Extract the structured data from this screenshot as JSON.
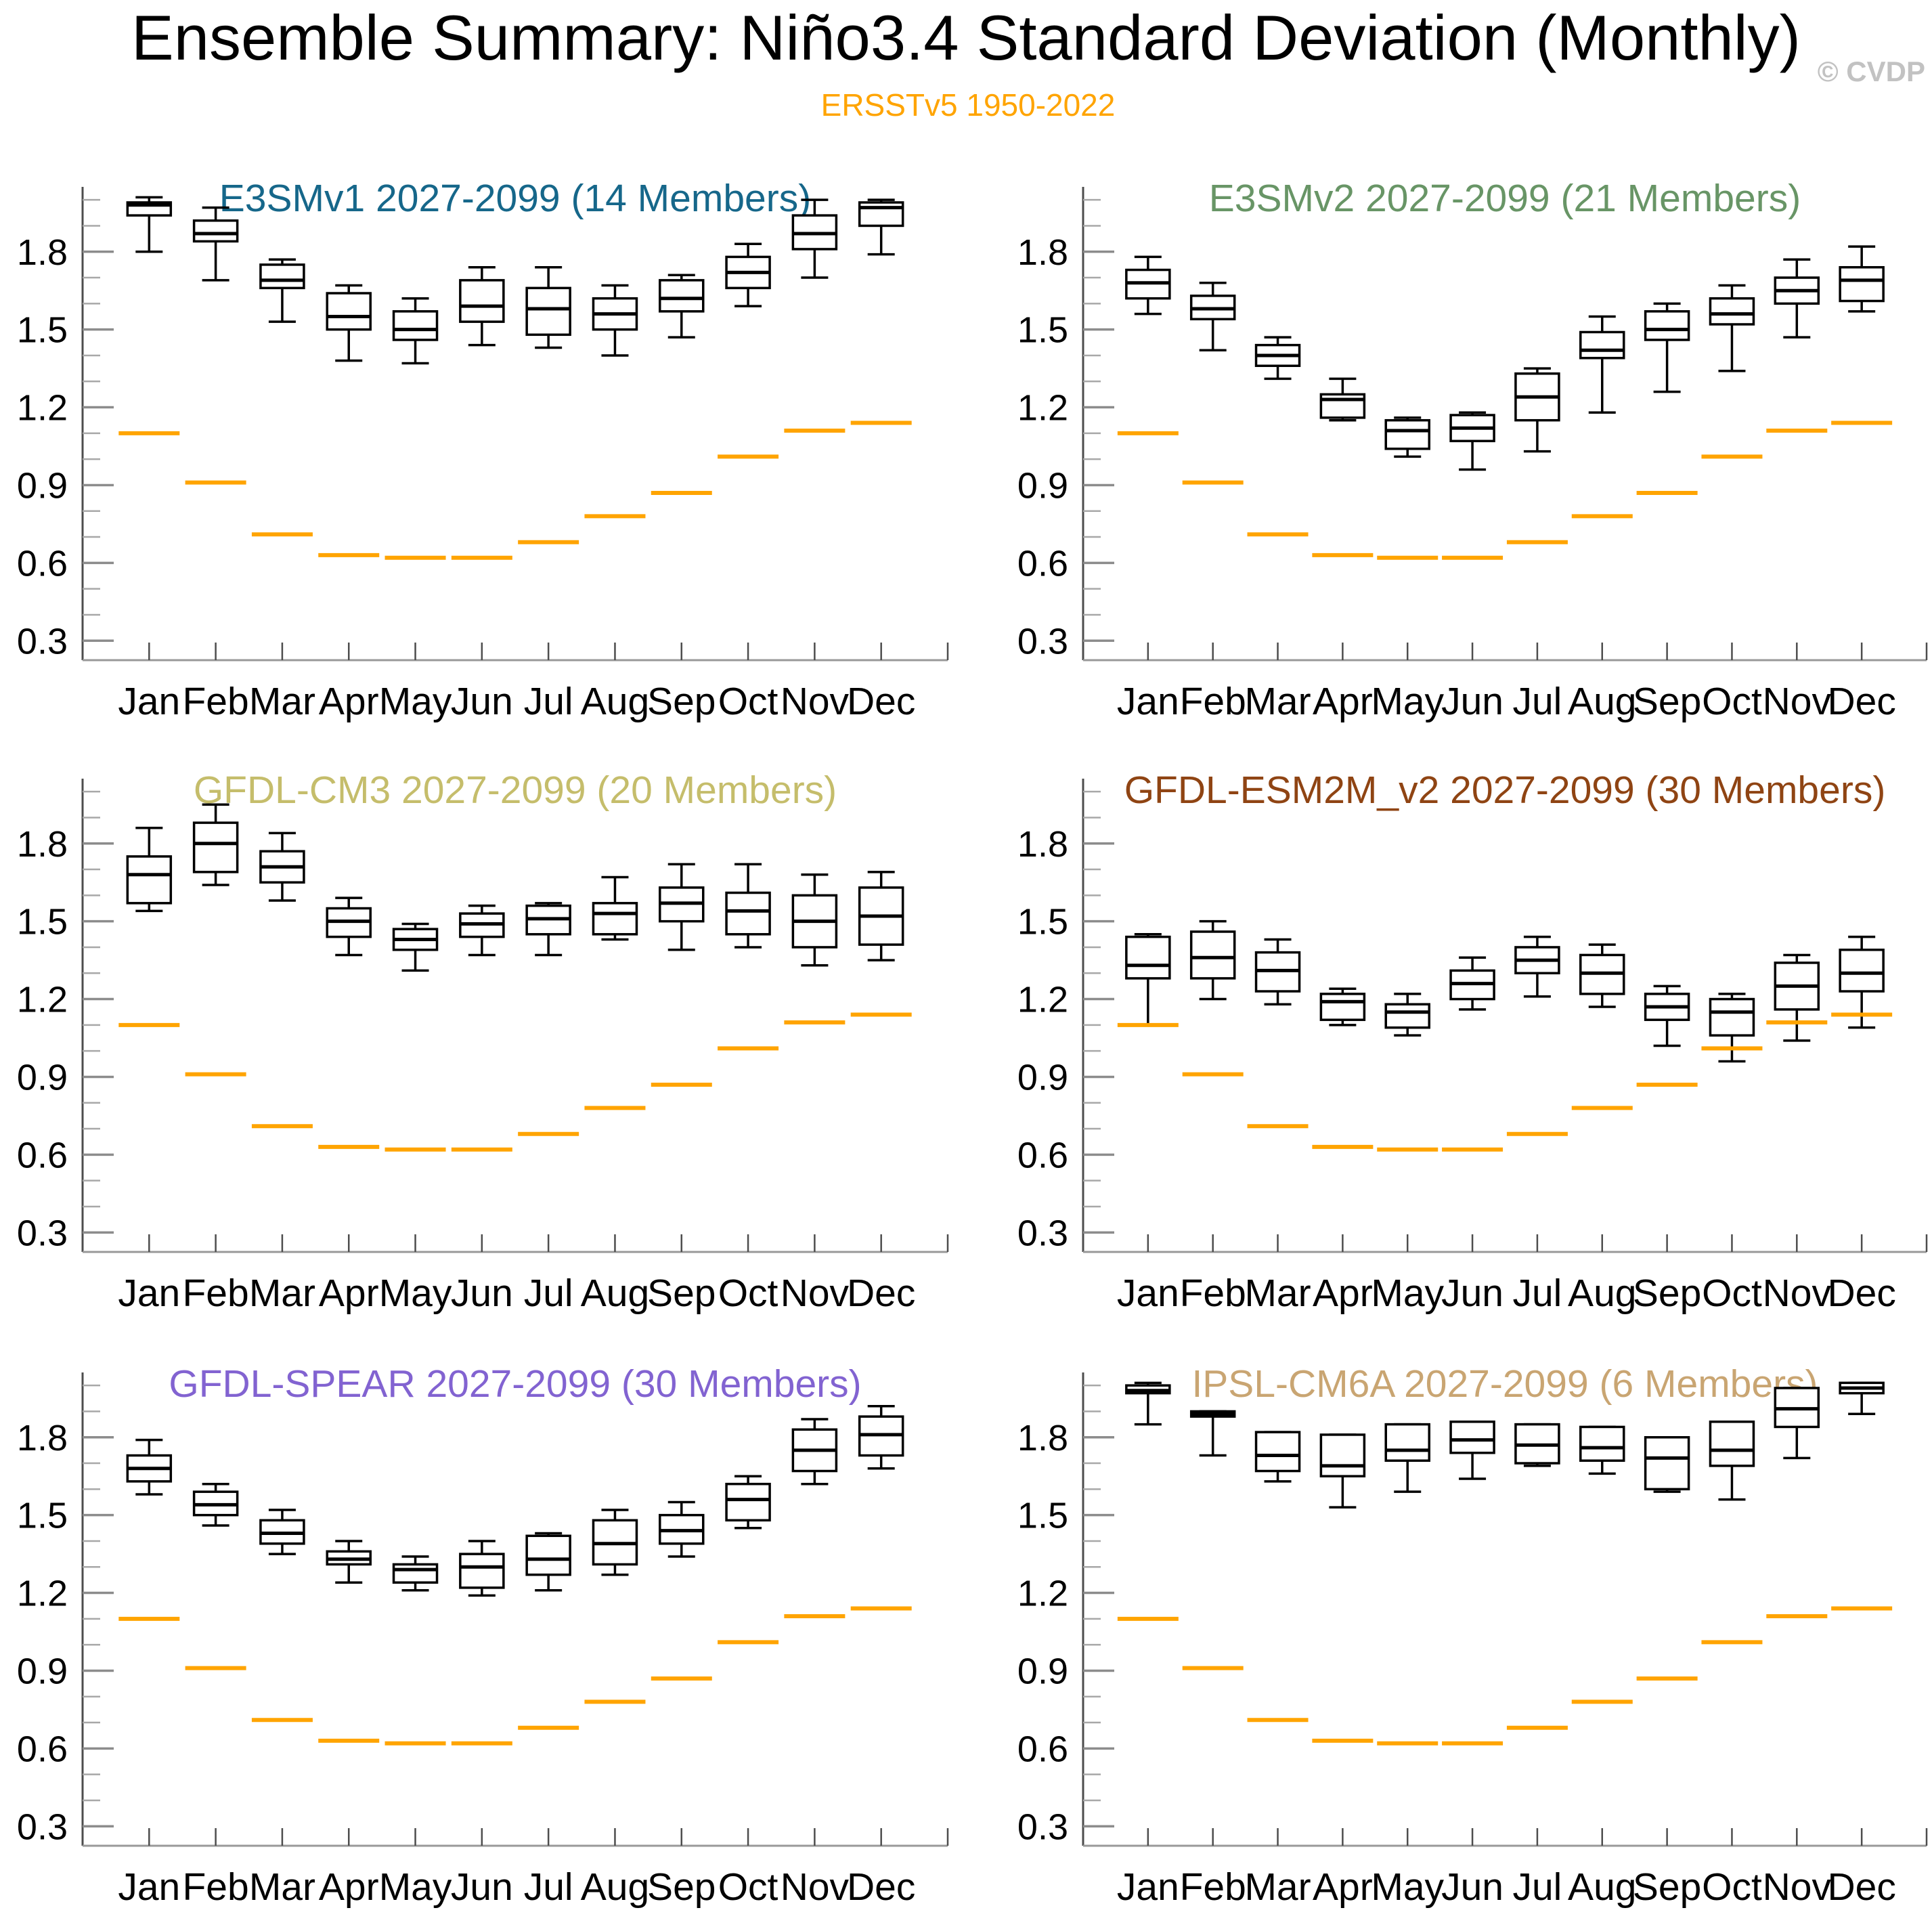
{
  "header": {
    "title": "Ensemble Summary: Niño3.4 Standard Deviation (Monthly)",
    "subtitle": "ERSSTv5 1950-2022",
    "watermark": "© CVDP"
  },
  "colors": {
    "title": "#000000",
    "subtitle": "#FFA400",
    "watermark": "#C2C2C2",
    "observation_line": "#FFA400",
    "box_line": "#000000",
    "axis_spine": "#4D4D4D",
    "major_tick": "#8C8C8C",
    "minor_tick": "#A8A8A8"
  },
  "months": [
    "Jan",
    "Feb",
    "Mar",
    "Apr",
    "May",
    "Jun",
    "Jul",
    "Aug",
    "Sep",
    "Oct",
    "Nov",
    "Dec"
  ],
  "y_axis": {
    "tick_labels": [
      "0.3",
      "0.6",
      "0.9",
      "1.2",
      "1.5",
      "1.8"
    ],
    "major_ticks": [
      0.3,
      0.6,
      0.9,
      1.2,
      1.5,
      1.8
    ],
    "minor_step": 0.1,
    "ylim": [
      0.225,
      2.05
    ]
  },
  "observed": {
    "label": "ERSSTv5 1950-2022",
    "values": [
      1.1,
      0.91,
      0.71,
      0.63,
      0.62,
      0.62,
      0.68,
      0.78,
      0.87,
      1.01,
      1.11,
      1.14
    ]
  },
  "chart_data": [
    {
      "type": "boxplot",
      "title": "E3SMv1 2027-2099 (14 Members)",
      "title_color": "#16678A",
      "members": 14,
      "categories": [
        "Jan",
        "Feb",
        "Mar",
        "Apr",
        "May",
        "Jun",
        "Jul",
        "Aug",
        "Sep",
        "Oct",
        "Nov",
        "Dec"
      ],
      "whislo": [
        1.8,
        1.69,
        1.53,
        1.38,
        1.37,
        1.44,
        1.43,
        1.4,
        1.47,
        1.59,
        1.7,
        1.79
      ],
      "q1": [
        1.94,
        1.84,
        1.66,
        1.5,
        1.46,
        1.53,
        1.48,
        1.5,
        1.57,
        1.66,
        1.81,
        1.9
      ],
      "median": [
        1.98,
        1.87,
        1.69,
        1.55,
        1.5,
        1.59,
        1.58,
        1.56,
        1.62,
        1.72,
        1.87,
        1.97
      ],
      "q3": [
        1.99,
        1.92,
        1.75,
        1.64,
        1.57,
        1.69,
        1.66,
        1.62,
        1.69,
        1.78,
        1.94,
        1.99
      ],
      "whishi": [
        2.01,
        1.97,
        1.77,
        1.67,
        1.62,
        1.74,
        1.74,
        1.67,
        1.71,
        1.83,
        2.0,
        2.0
      ],
      "observed": [
        1.1,
        0.91,
        0.71,
        0.63,
        0.62,
        0.62,
        0.68,
        0.78,
        0.87,
        1.01,
        1.11,
        1.14
      ],
      "ylim": [
        0.225,
        2.05
      ]
    },
    {
      "type": "boxplot",
      "title": "E3SMv2 2027-2099 (21 Members)",
      "title_color": "#689566",
      "members": 21,
      "categories": [
        "Jan",
        "Feb",
        "Mar",
        "Apr",
        "May",
        "Jun",
        "Jul",
        "Aug",
        "Sep",
        "Oct",
        "Nov",
        "Dec"
      ],
      "whislo": [
        1.56,
        1.42,
        1.31,
        1.15,
        1.01,
        0.96,
        1.03,
        1.18,
        1.26,
        1.34,
        1.47,
        1.57
      ],
      "q1": [
        1.62,
        1.54,
        1.36,
        1.16,
        1.04,
        1.07,
        1.15,
        1.39,
        1.46,
        1.52,
        1.6,
        1.61
      ],
      "median": [
        1.68,
        1.58,
        1.4,
        1.23,
        1.11,
        1.12,
        1.24,
        1.42,
        1.5,
        1.56,
        1.65,
        1.69
      ],
      "q3": [
        1.73,
        1.63,
        1.44,
        1.25,
        1.15,
        1.17,
        1.33,
        1.49,
        1.57,
        1.62,
        1.7,
        1.74
      ],
      "whishi": [
        1.78,
        1.68,
        1.47,
        1.31,
        1.16,
        1.18,
        1.35,
        1.55,
        1.6,
        1.67,
        1.77,
        1.82
      ],
      "observed": [
        1.1,
        0.91,
        0.71,
        0.63,
        0.62,
        0.62,
        0.68,
        0.78,
        0.87,
        1.01,
        1.11,
        1.14
      ],
      "ylim": [
        0.225,
        2.05
      ]
    },
    {
      "type": "boxplot",
      "title": "GFDL-CM3 2027-2099 (20 Members)",
      "title_color": "#C5BD6B",
      "members": 20,
      "categories": [
        "Jan",
        "Feb",
        "Mar",
        "Apr",
        "May",
        "Jun",
        "Jul",
        "Aug",
        "Sep",
        "Oct",
        "Nov",
        "Dec"
      ],
      "whislo": [
        1.54,
        1.64,
        1.58,
        1.37,
        1.31,
        1.37,
        1.37,
        1.43,
        1.39,
        1.4,
        1.33,
        1.35
      ],
      "q1": [
        1.57,
        1.69,
        1.65,
        1.44,
        1.39,
        1.44,
        1.45,
        1.45,
        1.5,
        1.45,
        1.4,
        1.41
      ],
      "median": [
        1.68,
        1.8,
        1.71,
        1.5,
        1.43,
        1.49,
        1.51,
        1.53,
        1.57,
        1.54,
        1.5,
        1.52
      ],
      "q3": [
        1.75,
        1.88,
        1.77,
        1.55,
        1.47,
        1.53,
        1.56,
        1.57,
        1.63,
        1.61,
        1.6,
        1.63
      ],
      "whishi": [
        1.86,
        1.95,
        1.84,
        1.59,
        1.49,
        1.56,
        1.57,
        1.67,
        1.72,
        1.72,
        1.68,
        1.69
      ],
      "observed": [
        1.1,
        0.91,
        0.71,
        0.63,
        0.62,
        0.62,
        0.68,
        0.78,
        0.87,
        1.01,
        1.11,
        1.14
      ],
      "ylim": [
        0.225,
        2.05
      ]
    },
    {
      "type": "boxplot",
      "title": "GFDL-ESM2M_v2 2027-2099 (30 Members)",
      "title_color": "#8F4413",
      "members": 30,
      "categories": [
        "Jan",
        "Feb",
        "Mar",
        "Apr",
        "May",
        "Jun",
        "Jul",
        "Aug",
        "Sep",
        "Oct",
        "Nov",
        "Dec"
      ],
      "whislo": [
        1.1,
        1.2,
        1.18,
        1.1,
        1.06,
        1.16,
        1.21,
        1.17,
        1.02,
        0.96,
        1.04,
        1.09
      ],
      "q1": [
        1.28,
        1.28,
        1.23,
        1.12,
        1.09,
        1.2,
        1.3,
        1.22,
        1.12,
        1.06,
        1.16,
        1.23
      ],
      "median": [
        1.33,
        1.36,
        1.31,
        1.19,
        1.15,
        1.26,
        1.35,
        1.3,
        1.17,
        1.15,
        1.25,
        1.3
      ],
      "q3": [
        1.44,
        1.46,
        1.38,
        1.22,
        1.18,
        1.31,
        1.4,
        1.37,
        1.22,
        1.2,
        1.34,
        1.39
      ],
      "whishi": [
        1.45,
        1.5,
        1.43,
        1.24,
        1.22,
        1.36,
        1.44,
        1.41,
        1.25,
        1.22,
        1.37,
        1.44
      ],
      "observed": [
        1.1,
        0.91,
        0.71,
        0.63,
        0.62,
        0.62,
        0.68,
        0.78,
        0.87,
        1.01,
        1.11,
        1.14
      ],
      "ylim": [
        0.225,
        2.05
      ]
    },
    {
      "type": "boxplot",
      "title": "GFDL-SPEAR 2027-2099 (30 Members)",
      "title_color": "#8263D1",
      "members": 30,
      "categories": [
        "Jan",
        "Feb",
        "Mar",
        "Apr",
        "May",
        "Jun",
        "Jul",
        "Aug",
        "Sep",
        "Oct",
        "Nov",
        "Dec"
      ],
      "whislo": [
        1.58,
        1.46,
        1.35,
        1.24,
        1.21,
        1.19,
        1.21,
        1.27,
        1.34,
        1.45,
        1.62,
        1.68
      ],
      "q1": [
        1.63,
        1.5,
        1.39,
        1.31,
        1.24,
        1.22,
        1.27,
        1.31,
        1.39,
        1.48,
        1.67,
        1.73
      ],
      "median": [
        1.68,
        1.54,
        1.43,
        1.33,
        1.29,
        1.3,
        1.33,
        1.39,
        1.44,
        1.56,
        1.75,
        1.81
      ],
      "q3": [
        1.73,
        1.59,
        1.48,
        1.36,
        1.31,
        1.35,
        1.42,
        1.48,
        1.5,
        1.62,
        1.83,
        1.88
      ],
      "whishi": [
        1.79,
        1.62,
        1.52,
        1.4,
        1.34,
        1.4,
        1.43,
        1.52,
        1.55,
        1.65,
        1.87,
        1.92
      ],
      "observed": [
        1.1,
        0.91,
        0.71,
        0.63,
        0.62,
        0.62,
        0.68,
        0.78,
        0.87,
        1.01,
        1.11,
        1.14
      ],
      "ylim": [
        0.225,
        2.05
      ]
    },
    {
      "type": "boxplot",
      "title": "IPSL-CM6A 2027-2099 (6 Members)",
      "title_color": "#C9A572",
      "members": 6,
      "categories": [
        "Jan",
        "Feb",
        "Mar",
        "Apr",
        "May",
        "Jun",
        "Jul",
        "Aug",
        "Sep",
        "Oct",
        "Nov",
        "Dec"
      ],
      "whislo": [
        1.85,
        1.73,
        1.63,
        1.53,
        1.59,
        1.64,
        1.69,
        1.66,
        1.59,
        1.56,
        1.72,
        1.89
      ],
      "q1": [
        1.97,
        1.88,
        1.67,
        1.65,
        1.71,
        1.74,
        1.7,
        1.71,
        1.6,
        1.69,
        1.84,
        1.97
      ],
      "median": [
        1.98,
        1.89,
        1.73,
        1.69,
        1.75,
        1.79,
        1.77,
        1.76,
        1.72,
        1.75,
        1.91,
        1.99
      ],
      "q3": [
        2.0,
        1.9,
        1.82,
        1.81,
        1.85,
        1.86,
        1.85,
        1.84,
        1.8,
        1.86,
        1.99,
        2.01
      ],
      "whishi": [
        2.01,
        1.9,
        1.82,
        1.81,
        1.85,
        1.86,
        1.85,
        1.84,
        1.8,
        1.86,
        1.99,
        2.01
      ],
      "observed": [
        1.1,
        0.91,
        0.71,
        0.63,
        0.62,
        0.62,
        0.68,
        0.78,
        0.87,
        1.01,
        1.11,
        1.14
      ],
      "ylim": [
        0.225,
        2.05
      ]
    }
  ],
  "layout_note": "2x3 grid of monthly box-and-whisker panels with orange observed reference segments"
}
